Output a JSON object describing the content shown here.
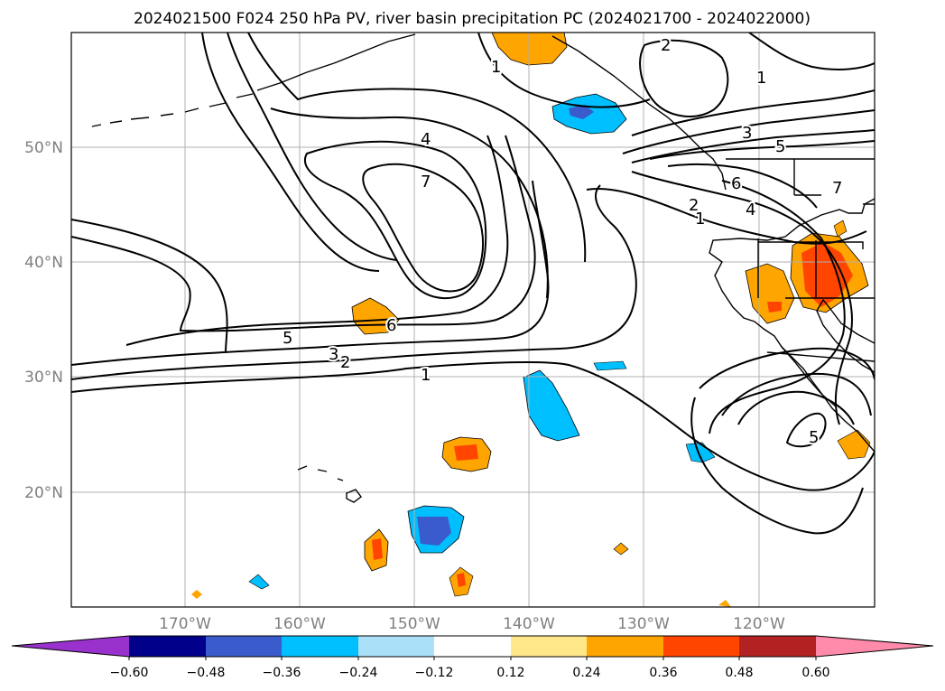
{
  "title": "2024021500 F024 250 hPa PV, river basin precipitation PC (2024021700 - 2024022000)",
  "lat_labels": [
    "50°N",
    "40°N",
    "30°N",
    "20°N"
  ],
  "lon_labels": [
    "170°W",
    "160°W",
    "150°W",
    "140°W",
    "130°W",
    "120°W"
  ],
  "contour_labels": [
    "1",
    "2",
    "3",
    "4",
    "5",
    "6",
    "7",
    "1",
    "2",
    "3",
    "5",
    "6",
    "7",
    "5"
  ],
  "colorbar": {
    "colors": [
      "#9932cc",
      "#00008b",
      "#3a5bcc",
      "#00bfff",
      "#abe0f9",
      "#ffffff",
      "#ffe88a",
      "#ffa500",
      "#ff4500",
      "#b22222",
      "#ff8aa9"
    ],
    "tick_labels": [
      "−0.60",
      "−0.48",
      "−0.36",
      "−0.24",
      "−0.12",
      "0.12",
      "0.24",
      "0.36",
      "0.48",
      "0.60"
    ]
  }
}
